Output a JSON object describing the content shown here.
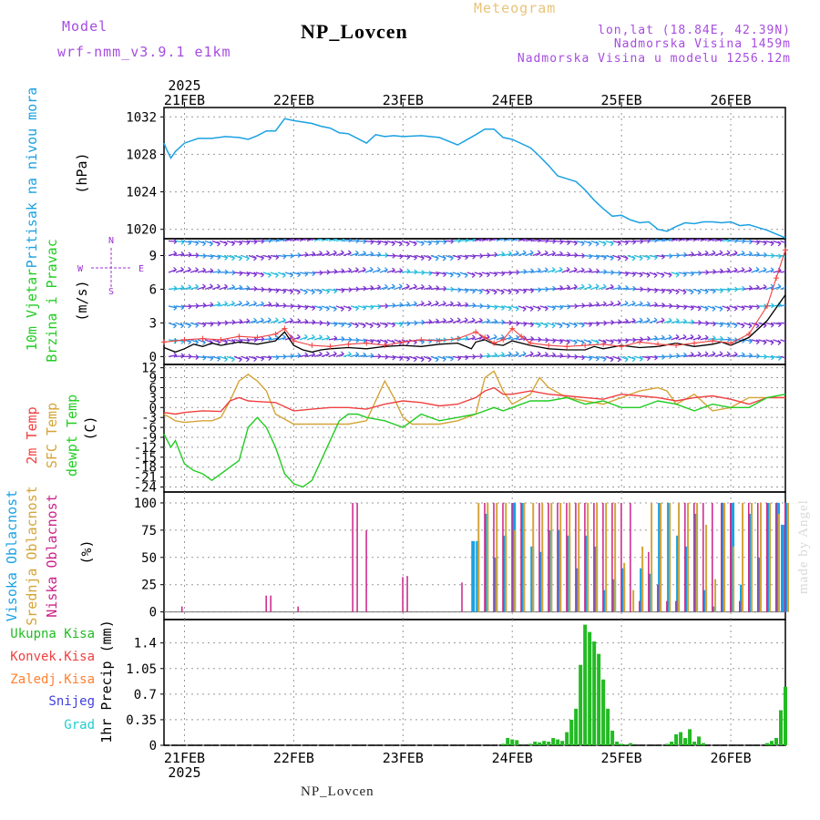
{
  "header": {
    "model_label": "Model",
    "model_name": "wrf-nmm_v3.9.1 e1km",
    "product": "Meteogram",
    "station": "NP_Lovcen",
    "coords": "lon,lat (18.84E, 42.39N)",
    "elevation": "Nadmorska Visina 1459m",
    "model_elevation": "Nadmorska Visina u modelu 1256.12m"
  },
  "footer": {
    "station": "NP_Lovcen"
  },
  "credit": "made by Angel",
  "time_axis": {
    "year": "2025",
    "days": [
      "21FEB",
      "22FEB",
      "23FEB",
      "24FEB",
      "25FEB",
      "26FEB"
    ],
    "start_hour_offset": -4.5,
    "end_hour_offset": 132
  },
  "colors": {
    "pressure": "#1ba1e2",
    "temp2m": "#f04040",
    "sfc": "#d4a437",
    "dewpt": "#22cc22",
    "wind_axis": "#9b30d0",
    "wind_title": "#22cc22",
    "cloud_high": "#1ba1e2",
    "cloud_mid": "#d4a437",
    "cloud_low": "#cc2288",
    "precip_total": "#22bb22",
    "precip_conv": "#f04040",
    "precip_grid": "#ff8030",
    "snow": "#4040e0",
    "hail": "#22cccc"
  },
  "chart_data": [
    {
      "type": "line",
      "panel": "pressure",
      "ylabel_left": "Pritisak na nivou mora",
      "ylabel_unit": "(hPa)",
      "yticks": [
        "1020",
        "1024",
        "1028",
        "1032"
      ],
      "ylim": [
        1019,
        1033
      ],
      "series": [
        {
          "x": [
            -4.5,
            -4,
            -3,
            -2,
            0,
            3,
            6,
            9,
            12,
            14,
            16,
            18,
            20,
            22,
            24,
            28,
            30,
            32,
            34,
            36,
            40,
            42,
            44,
            46,
            48,
            52,
            56,
            60,
            64,
            66,
            68,
            70,
            72,
            76,
            78,
            80,
            82,
            84,
            86,
            88,
            90,
            92,
            94,
            96,
            98,
            100,
            102,
            104,
            106,
            108,
            110,
            112,
            114,
            116,
            118,
            120,
            122,
            124,
            126,
            128,
            130,
            132
          ],
          "values": [
            1029.2,
            1028.6,
            1027.6,
            1028.3,
            1029.2,
            1029.7,
            1029.7,
            1029.9,
            1029.8,
            1029.6,
            1030.0,
            1030.5,
            1030.5,
            1031.8,
            1031.6,
            1031.3,
            1031.0,
            1030.8,
            1030.3,
            1030.2,
            1029.2,
            1030.1,
            1029.9,
            1030.0,
            1029.9,
            1030.0,
            1029.8,
            1029.0,
            1030.1,
            1030.7,
            1030.7,
            1029.8,
            1029.6,
            1028.7,
            1027.8,
            1026.8,
            1025.7,
            1025.4,
            1025.1,
            1024.2,
            1023.1,
            1022.2,
            1021.4,
            1021.5,
            1021.0,
            1020.7,
            1020.8,
            1020.0,
            1019.8,
            1020.3,
            1020.7,
            1020.6,
            1020.8,
            1020.8,
            1020.7,
            1020.8,
            1020.4,
            1020.5,
            1020.2,
            1019.9,
            1019.5,
            1019.1
          ]
        }
      ]
    },
    {
      "type": "line",
      "panel": "wind",
      "ylabel_left": "10m Vjetar",
      "ylabel_left2": "Brzina i Pravac",
      "ylabel_unit": "(m/s)",
      "compass": {
        "n": "N",
        "w": "W",
        "e": "E",
        "s": "S"
      },
      "yticks": [
        "0",
        "3",
        "6",
        "9"
      ],
      "ylim": [
        -0.7,
        10.5
      ],
      "arrow_rows": [
        0.0,
        1.5,
        3.0,
        4.5,
        6.0,
        7.5,
        9.0,
        10.3
      ],
      "series": [
        {
          "style": "black",
          "x": [
            -4.5,
            -2,
            0,
            2,
            4,
            6,
            8,
            12,
            16,
            20,
            22,
            24,
            26,
            28,
            30,
            32,
            36,
            40,
            44,
            48,
            52,
            56,
            60,
            63,
            64,
            66,
            68,
            70,
            72,
            76,
            80,
            84,
            88,
            90,
            92,
            96,
            100,
            104,
            108,
            112,
            116,
            118,
            120,
            124,
            128,
            132
          ],
          "values": [
            0.8,
            0.4,
            0.7,
            1.1,
            0.9,
            1.2,
            1.0,
            1.3,
            1.1,
            1.4,
            2.2,
            1.0,
            0.6,
            0.4,
            0.6,
            0.7,
            0.8,
            0.7,
            0.9,
            1.0,
            0.9,
            1.1,
            1.2,
            0.7,
            1.3,
            1.5,
            1.1,
            1.0,
            1.4,
            1.0,
            0.7,
            0.6,
            0.6,
            0.9,
            0.7,
            1.0,
            0.8,
            0.9,
            1.2,
            0.9,
            1.1,
            1.3,
            1.0,
            1.7,
            3.2,
            5.5
          ]
        },
        {
          "style": "red",
          "x": [
            -4.5,
            -2,
            0,
            4,
            8,
            12,
            16,
            20,
            22,
            24,
            28,
            32,
            36,
            40,
            44,
            48,
            52,
            56,
            60,
            64,
            66,
            68,
            70,
            72,
            74,
            76,
            80,
            84,
            88,
            92,
            96,
            100,
            104,
            108,
            112,
            116,
            120,
            124,
            128,
            130,
            132
          ],
          "values": [
            1.3,
            1.4,
            1.5,
            1.6,
            1.5,
            1.8,
            1.7,
            2.0,
            2.5,
            1.4,
            1.0,
            0.9,
            1.1,
            1.2,
            1.0,
            1.3,
            1.5,
            1.4,
            1.6,
            2.2,
            1.7,
            1.2,
            1.5,
            2.5,
            1.8,
            1.2,
            1.0,
            0.9,
            1.0,
            1.1,
            0.9,
            1.3,
            1.1,
            1.0,
            1.2,
            1.4,
            1.2,
            2.0,
            4.5,
            7.0,
            9.5
          ]
        }
      ]
    },
    {
      "type": "line",
      "panel": "temperature",
      "ylabel_left": "2m Temp",
      "ylabel_left2": "SFC Temp",
      "ylabel_left3": "dewpt Temp",
      "ylabel_unit": "(C)",
      "yticks": [
        "-24",
        "-21",
        "-18",
        "-15",
        "-12",
        "-9",
        "-6",
        "-3",
        "0",
        "3",
        "6",
        "9",
        "12"
      ],
      "ylim": [
        -25.5,
        13
      ],
      "series": [
        {
          "name": "2m Temp",
          "x": [
            -4.5,
            -2,
            0,
            4,
            8,
            10,
            12,
            14,
            16,
            20,
            24,
            28,
            32,
            36,
            40,
            44,
            48,
            52,
            56,
            60,
            64,
            66,
            68,
            70,
            72,
            76,
            80,
            84,
            88,
            92,
            96,
            100,
            104,
            108,
            112,
            116,
            120,
            124,
            128,
            132
          ],
          "values": [
            -1.5,
            -2,
            -1.5,
            -1,
            -1.2,
            2,
            3,
            2,
            1.8,
            1.5,
            -1,
            -0.5,
            0,
            0,
            -0.5,
            1,
            2,
            1.5,
            0.5,
            1,
            3,
            5,
            6,
            4,
            4,
            5,
            4,
            3.5,
            3,
            2.5,
            4,
            3.5,
            3,
            2,
            3,
            3.5,
            2.5,
            1,
            3,
            3
          ]
        },
        {
          "name": "SFC Temp",
          "x": [
            -4.5,
            -2,
            0,
            4,
            6,
            8,
            10,
            12,
            14,
            16,
            18,
            20,
            24,
            28,
            32,
            36,
            40,
            42,
            44,
            46,
            48,
            50,
            52,
            56,
            60,
            64,
            66,
            68,
            70,
            72,
            76,
            78,
            80,
            84,
            88,
            92,
            96,
            100,
            104,
            106,
            108,
            112,
            116,
            120,
            124,
            128,
            132
          ],
          "values": [
            -2,
            -4,
            -4.5,
            -4,
            -4,
            -3,
            2,
            8,
            10,
            8,
            5,
            -2,
            -5,
            -5,
            -5,
            -5,
            -4,
            2,
            8,
            3,
            -3,
            -5,
            -5,
            -5,
            -4,
            -2,
            9,
            11,
            5,
            1,
            4,
            9,
            6,
            3,
            2,
            1,
            3,
            5,
            6,
            5,
            1,
            4,
            -1,
            0,
            3,
            3,
            3
          ]
        },
        {
          "name": "dewpt Temp",
          "x": [
            -4.5,
            -3,
            -2,
            0,
            2,
            4,
            6,
            8,
            10,
            12,
            14,
            16,
            18,
            20,
            22,
            24,
            26,
            28,
            30,
            32,
            34,
            36,
            38,
            40,
            44,
            48,
            52,
            56,
            60,
            64,
            68,
            70,
            72,
            76,
            80,
            84,
            88,
            92,
            96,
            100,
            104,
            108,
            112,
            116,
            120,
            124,
            128,
            132
          ],
          "values": [
            -8,
            -12,
            -10,
            -17,
            -19,
            -20,
            -22,
            -20,
            -18,
            -16,
            -6,
            -3,
            -6,
            -12,
            -20,
            -23,
            -24,
            -22,
            -16,
            -10,
            -4,
            -2,
            -2,
            -3,
            -4,
            -6,
            -2,
            -4,
            -3,
            -2,
            0,
            -1,
            0,
            2,
            2,
            3,
            1,
            2,
            0,
            0,
            2,
            1,
            -1,
            1,
            0,
            0,
            3,
            4
          ]
        }
      ]
    },
    {
      "type": "bar",
      "panel": "clouds",
      "ylabel_left": "Visoka Oblacnost",
      "ylabel_left2": "Srednja Oblacnost",
      "ylabel_left3": "Niska Oblacnost",
      "ylabel_unit": "(%)",
      "yticks": [
        "0",
        "25",
        "50",
        "75",
        "100"
      ],
      "ylim": [
        -7,
        110
      ],
      "series": [
        {
          "name": "Visoka Oblacnost",
          "x": [
            63,
            64,
            66,
            68,
            70,
            72,
            74,
            76,
            78,
            80,
            82,
            84,
            86,
            88,
            90,
            92,
            94,
            96,
            100,
            102,
            104,
            106,
            108,
            110,
            112,
            114,
            116,
            118,
            120,
            122,
            124,
            126,
            128,
            130,
            131,
            132
          ],
          "values": [
            65,
            65,
            90,
            50,
            70,
            100,
            100,
            60,
            55,
            75,
            75,
            70,
            40,
            70,
            60,
            20,
            30,
            40,
            40,
            35,
            100,
            100,
            70,
            60,
            90,
            20,
            5,
            100,
            100,
            25,
            90,
            50,
            100,
            100,
            80,
            100
          ]
        },
        {
          "name": "Srednja Oblacnost",
          "x": [
            64,
            66,
            68,
            70,
            72,
            74,
            76,
            78,
            80,
            82,
            84,
            86,
            88,
            90,
            92,
            94,
            96,
            98,
            100,
            102,
            104,
            106,
            108,
            110,
            112,
            114,
            116,
            118,
            120,
            122,
            124,
            126,
            128,
            130,
            132
          ],
          "values": [
            100,
            100,
            100,
            100,
            75,
            100,
            100,
            100,
            100,
            100,
            100,
            100,
            100,
            100,
            100,
            100,
            45,
            20,
            60,
            100,
            100,
            100,
            100,
            100,
            100,
            80,
            30,
            100,
            60,
            100,
            100,
            100,
            100,
            90,
            100
          ]
        },
        {
          "name": "Niska Oblacnost",
          "x": [
            -1.5,
            17,
            18,
            24,
            36,
            37,
            39,
            47,
            48,
            60,
            65,
            67,
            69,
            71,
            73,
            77,
            79,
            81,
            83,
            85,
            87,
            89,
            91,
            93,
            95,
            97,
            99,
            101,
            103,
            105,
            107,
            109,
            111,
            113,
            115,
            117,
            119,
            121,
            123,
            125,
            127,
            129,
            131
          ],
          "values": [
            5,
            15,
            15,
            5,
            100,
            100,
            75,
            32,
            33,
            27,
            100,
            100,
            100,
            100,
            100,
            100,
            100,
            100,
            100,
            100,
            100,
            100,
            100,
            100,
            100,
            100,
            10,
            55,
            25,
            10,
            10,
            100,
            100,
            100,
            100,
            100,
            100,
            10,
            100,
            100,
            100,
            100,
            100
          ]
        }
      ]
    },
    {
      "type": "bar",
      "panel": "precip",
      "ylabel_unit": "1hr Precip (mm)",
      "legend": [
        "Ukupna Kisa",
        "Konvek.Kisa",
        "Zaledj.Kisa",
        "Snijeg",
        "Grad"
      ],
      "yticks": [
        "0",
        "0.35",
        "0.7",
        "1.05",
        "1.4"
      ],
      "ylim": [
        0,
        1.72
      ],
      "series": [
        {
          "name": "Ukupna Kisa",
          "x": [
            70,
            71,
            72,
            73,
            76,
            77,
            78,
            79,
            80,
            81,
            82,
            83,
            84,
            85,
            86,
            87,
            88,
            89,
            90,
            91,
            92,
            93,
            94,
            95,
            96,
            97,
            98,
            106,
            107,
            108,
            109,
            110,
            111,
            112,
            113,
            114,
            128,
            129,
            130,
            131,
            132
          ],
          "values": [
            0.02,
            0.1,
            0.08,
            0.07,
            0.02,
            0.05,
            0.04,
            0.06,
            0.05,
            0.1,
            0.08,
            0.06,
            0.18,
            0.35,
            0.5,
            1.1,
            1.65,
            1.55,
            1.42,
            1.25,
            0.9,
            0.5,
            0.2,
            0.05,
            0.02,
            0.01,
            0.03,
            0.02,
            0.05,
            0.15,
            0.18,
            0.1,
            0.22,
            0.05,
            0.12,
            0.03,
            0.03,
            0.06,
            0.1,
            0.48,
            0.8
          ]
        }
      ]
    }
  ]
}
